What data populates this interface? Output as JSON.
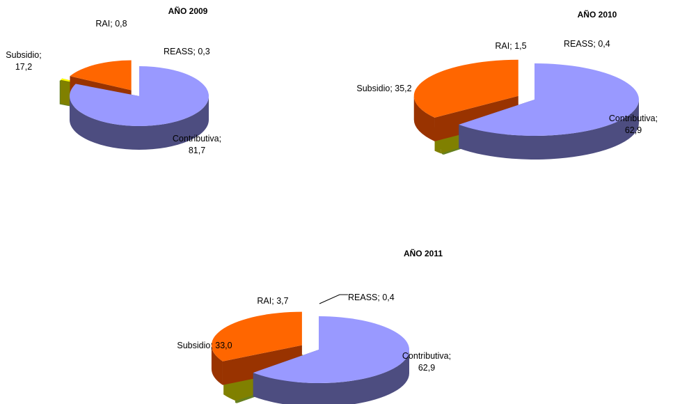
{
  "chart_data": [
    {
      "type": "pie",
      "title": "AÑO 2009",
      "slices": [
        {
          "name": "Contributiva",
          "value": 81.7,
          "label_lines": [
            "Contributiva;",
            "81,7"
          ]
        },
        {
          "name": "REASS",
          "value": 0.3,
          "label_lines": [
            "REASS; 0,3"
          ]
        },
        {
          "name": "RAI",
          "value": 0.8,
          "label_lines": [
            "RAI; 0,8"
          ]
        },
        {
          "name": "Subsidio",
          "value": 17.2,
          "label_lines": [
            "Subsidio;",
            "17,2"
          ]
        }
      ]
    },
    {
      "type": "pie",
      "title": "AÑO 2010",
      "slices": [
        {
          "name": "Contributiva",
          "value": 62.9,
          "label_lines": [
            "Contributiva;",
            "62,9"
          ]
        },
        {
          "name": "REASS",
          "value": 0.4,
          "label_lines": [
            "REASS; 0,4"
          ]
        },
        {
          "name": "RAI",
          "value": 1.5,
          "label_lines": [
            "RAI; 1,5"
          ]
        },
        {
          "name": "Subsidio",
          "value": 35.2,
          "label_lines": [
            "Subsidio; 35,2"
          ]
        }
      ]
    },
    {
      "type": "pie",
      "title": "AÑO 2011",
      "slices": [
        {
          "name": "Contributiva",
          "value": 62.9,
          "label_lines": [
            "Contributiva;",
            "62,9"
          ]
        },
        {
          "name": "REASS",
          "value": 0.4,
          "label_lines": [
            "REASS; 0,4"
          ]
        },
        {
          "name": "RAI",
          "value": 3.7,
          "label_lines": [
            "RAI; 3,7"
          ]
        },
        {
          "name": "Subsidio",
          "value": 33.0,
          "label_lines": [
            "Subsidio; 33,0"
          ]
        }
      ]
    }
  ],
  "colors": {
    "Contributiva": {
      "top": "#9999ff",
      "side": "#4d4d80"
    },
    "REASS": {
      "top": "#ccff66",
      "side": "#66801f"
    },
    "RAI": {
      "top": "#ffff00",
      "side": "#808000"
    },
    "Subsidio": {
      "top": "#ff6600",
      "side": "#993300"
    }
  }
}
